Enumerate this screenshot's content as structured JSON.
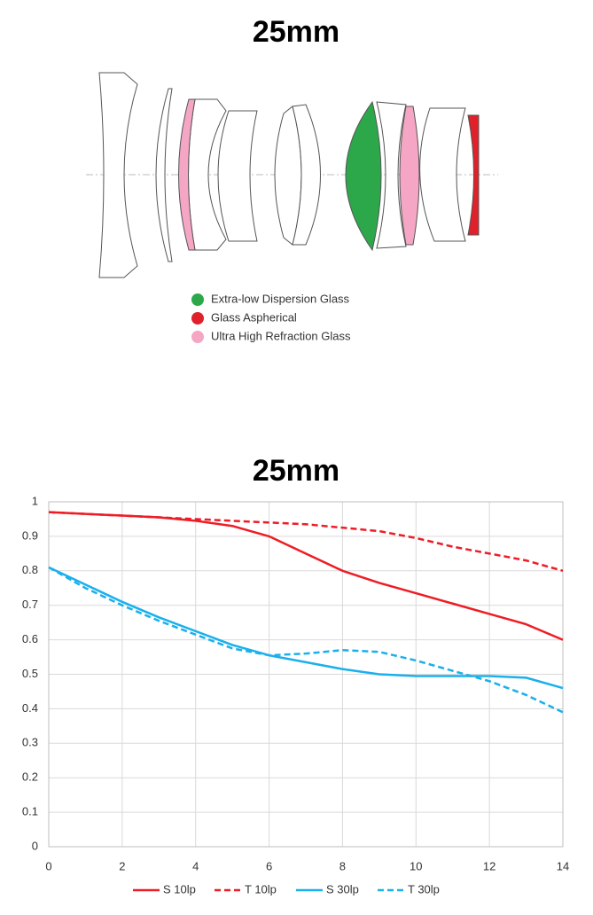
{
  "diagram": {
    "title": "25mm",
    "legend": [
      {
        "label": "Extra-low Dispersion Glass",
        "color": "#2ca84a"
      },
      {
        "label": "Glass Aspherical",
        "color": "#e0202a"
      },
      {
        "label": "Ultra High Refraction Glass",
        "color": "#f4a6c4"
      }
    ]
  },
  "chart_data": {
    "type": "line",
    "title": "25mm",
    "x": [
      0,
      1,
      2,
      3,
      4,
      5,
      6,
      7,
      8,
      9,
      10,
      11,
      12,
      13,
      14
    ],
    "series": [
      {
        "name": "S 10lp",
        "color": "#ee1c25",
        "style": "solid",
        "values": [
          0.97,
          0.965,
          0.96,
          0.955,
          0.945,
          0.93,
          0.9,
          0.85,
          0.8,
          0.765,
          0.735,
          0.705,
          0.675,
          0.645,
          0.6
        ]
      },
      {
        "name": "T 10lp",
        "color": "#ee1c25",
        "style": "dashed",
        "values": [
          0.97,
          0.965,
          0.96,
          0.955,
          0.95,
          0.945,
          0.94,
          0.935,
          0.925,
          0.915,
          0.895,
          0.87,
          0.85,
          0.83,
          0.8
        ]
      },
      {
        "name": "S 30lp",
        "color": "#1ab0ec",
        "style": "solid",
        "values": [
          0.81,
          0.76,
          0.71,
          0.665,
          0.625,
          0.585,
          0.555,
          0.535,
          0.515,
          0.5,
          0.495,
          0.495,
          0.495,
          0.49,
          0.46
        ]
      },
      {
        "name": "T 30lp",
        "color": "#1ab0ec",
        "style": "dashed",
        "values": [
          0.81,
          0.75,
          0.7,
          0.655,
          0.615,
          0.575,
          0.555,
          0.56,
          0.57,
          0.565,
          0.54,
          0.51,
          0.48,
          0.44,
          0.39
        ]
      }
    ],
    "xlim": [
      0,
      14
    ],
    "xticks": [
      0,
      2,
      4,
      6,
      8,
      10,
      12,
      14
    ],
    "ylim": [
      0,
      1
    ],
    "yticks": [
      0,
      0.1,
      0.2,
      0.3,
      0.4,
      0.5,
      0.6,
      0.7,
      0.8,
      0.9,
      1
    ],
    "grid": true
  }
}
